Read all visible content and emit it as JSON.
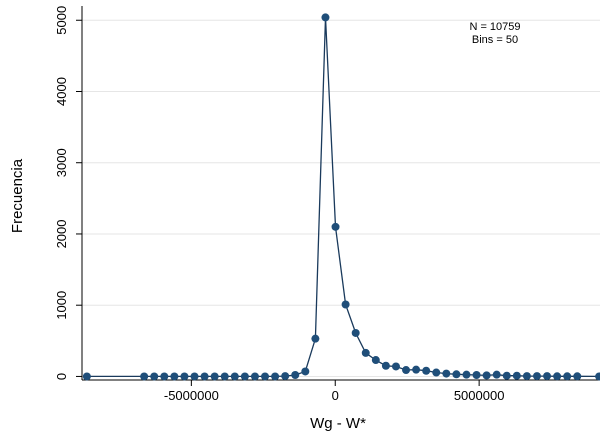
{
  "chart_data": {
    "type": "line",
    "title": "",
    "xlabel": "Wg - W*",
    "ylabel": "Frecuencia",
    "xlim": [
      -8800000,
      9200000
    ],
    "ylim": [
      -50,
      5200
    ],
    "xticks": [
      -5000000,
      0,
      5000000
    ],
    "xtick_labels": [
      "-5000000",
      "0",
      "5000000"
    ],
    "yticks": [
      0,
      1000,
      2000,
      3000,
      4000,
      5000
    ],
    "ytick_labels": [
      "0",
      "1000",
      "2000",
      "3000",
      "4000",
      "5000"
    ],
    "grid": true,
    "legend": "none",
    "annotations": [
      "N = 10759",
      "Bins = 50"
    ],
    "colors": {
      "line": "#1a3a5c",
      "marker": "#1f4e79",
      "grid": "#e6e6e6"
    },
    "series": [
      {
        "x": [
          -8630000,
          -6640000,
          -6290000,
          -5940000,
          -5590000,
          -5240000,
          -4890000,
          -4540000,
          -4190000,
          -3840000,
          -3490000,
          -3140000,
          -2790000,
          -2440000,
          -2090000,
          -1740000,
          -1390000,
          -1040000,
          -690000,
          -340000,
          10000,
          360000,
          710000,
          1060000,
          1410000,
          1760000,
          2110000,
          2460000,
          2810000,
          3160000,
          3510000,
          3860000,
          4210000,
          4560000,
          4910000,
          5260000,
          5610000,
          5960000,
          6310000,
          6660000,
          7010000,
          7360000,
          7710000,
          8060000,
          8410000,
          9170000
        ],
        "y": [
          0,
          0,
          0,
          0,
          0,
          0,
          0,
          0,
          0,
          0,
          0,
          0,
          0,
          0,
          0,
          5,
          20,
          70,
          530,
          5040,
          2100,
          1010,
          610,
          330,
          230,
          150,
          140,
          90,
          95,
          80,
          55,
          40,
          30,
          25,
          20,
          15,
          25,
          10,
          10,
          5,
          5,
          5,
          2,
          2,
          2,
          0
        ]
      }
    ]
  }
}
